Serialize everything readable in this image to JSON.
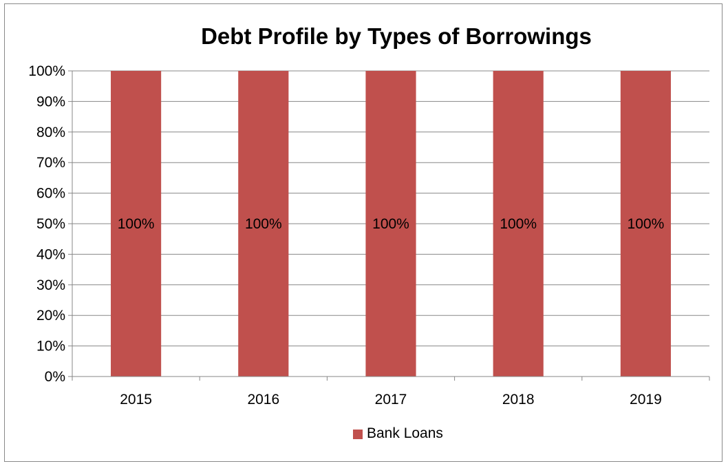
{
  "chart_data": {
    "type": "bar",
    "stacked": true,
    "title": "Debt Profile by Types of Borrowings",
    "categories": [
      "2015",
      "2016",
      "2017",
      "2018",
      "2019"
    ],
    "series": [
      {
        "name": "Bank Loans",
        "values": [
          1.0,
          1.0,
          1.0,
          1.0,
          1.0
        ],
        "data_labels": [
          "100%",
          "100%",
          "100%",
          "100%",
          "100%"
        ],
        "color": "#C0504D"
      }
    ],
    "ylim": [
      0,
      1
    ],
    "y_ticks": [
      0,
      0.1,
      0.2,
      0.3,
      0.4,
      0.5,
      0.6,
      0.7,
      0.8,
      0.9,
      1.0
    ],
    "y_tick_labels": [
      "0%",
      "10%",
      "20%",
      "30%",
      "40%",
      "50%",
      "60%",
      "70%",
      "80%",
      "90%",
      "100%"
    ],
    "xlabel": "",
    "ylabel": "",
    "grid": true,
    "legend_position": "bottom",
    "colors": {
      "bar": "#C0504D",
      "gridline": "#878787",
      "axis": "#878787"
    }
  }
}
